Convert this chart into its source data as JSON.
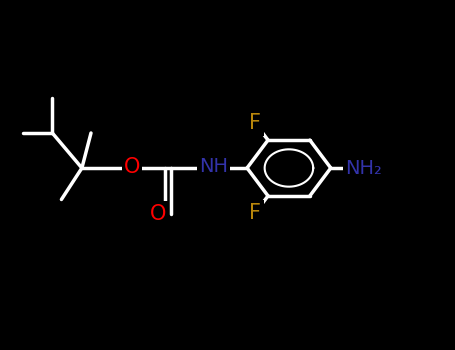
{
  "bg_color": "#000000",
  "bond_color": "#ffffff",
  "bond_lw": 2.5,
  "figsize": [
    4.55,
    3.5
  ],
  "dpi": 100,
  "atom_colors": {
    "O": "#ff0000",
    "N": "#3333aa",
    "F": "#b8860b",
    "C": "#ffffff"
  }
}
